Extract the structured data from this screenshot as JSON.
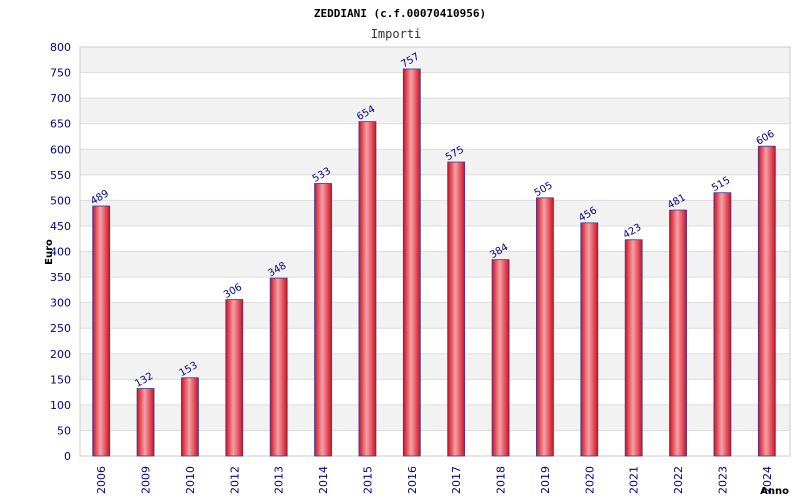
{
  "chart_data": {
    "type": "bar",
    "title": "ZEDDIANI (c.f.00070410956)",
    "subtitle": "Importi",
    "xlabel": "Anno",
    "ylabel": "Euro",
    "categories": [
      "2006",
      "2009",
      "2010",
      "2012",
      "2013",
      "2014",
      "2015",
      "2016",
      "2017",
      "2018",
      "2019",
      "2020",
      "2021",
      "2022",
      "2023",
      "2024"
    ],
    "values": [
      489,
      132,
      153,
      306,
      348,
      533,
      654,
      757,
      575,
      384,
      505,
      456,
      423,
      481,
      515,
      606
    ],
    "ylim": [
      0,
      800
    ],
    "yticks": [
      0,
      50,
      100,
      150,
      200,
      250,
      300,
      350,
      400,
      450,
      500,
      550,
      600,
      650,
      700,
      750,
      800
    ],
    "grid": true,
    "colors": {
      "bar": "#e8162a",
      "bar_edge": "#3a3a9a",
      "label": "#00008b",
      "band": "#f2f2f2"
    }
  }
}
